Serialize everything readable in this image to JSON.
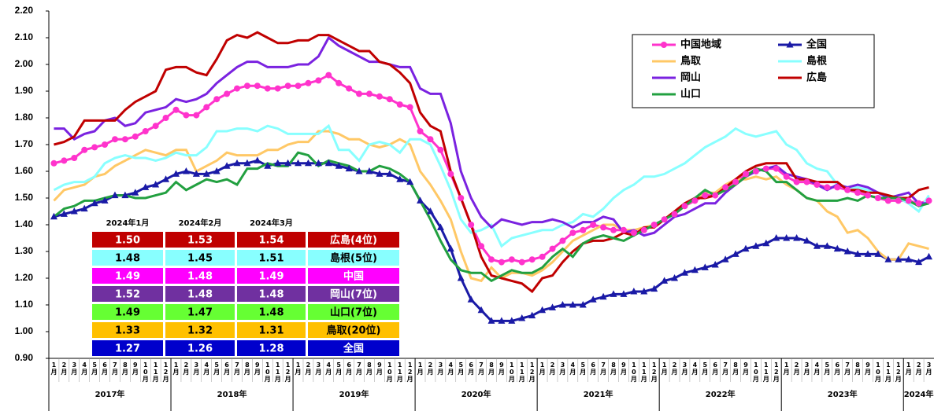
{
  "chart_data": {
    "type": "line",
    "categories": [
      "1月",
      "2月",
      "3月",
      "4月",
      "5月",
      "6月",
      "7月",
      "8月",
      "9月",
      "10月",
      "11月",
      "12月",
      "1月",
      "2月",
      "3月",
      "4月",
      "5月",
      "6月",
      "7月",
      "8月",
      "9月",
      "10月",
      "11月",
      "12月",
      "1月",
      "2月",
      "3月",
      "4月",
      "5月",
      "6月",
      "7月",
      "8月",
      "9月",
      "10月",
      "11月",
      "12月",
      "1月",
      "2月",
      "3月",
      "4月",
      "5月",
      "6月",
      "7月",
      "8月",
      "9月",
      "10月",
      "11月",
      "12月",
      "1月",
      "2月",
      "3月",
      "4月",
      "5月",
      "6月",
      "7月",
      "8月",
      "9月",
      "10月",
      "11月",
      "12月",
      "1月",
      "2月",
      "3月",
      "4月",
      "5月",
      "6月",
      "7月",
      "8月",
      "9月",
      "10月",
      "11月",
      "12月",
      "1月",
      "2月",
      "3月",
      "4月",
      "5月",
      "6月",
      "7月",
      "8月",
      "9月",
      "10月",
      "11月",
      "12月",
      "1月",
      "2月",
      "3月"
    ],
    "year_labels": [
      "2017年",
      "2018年",
      "2019年",
      "2020年",
      "2021年",
      "2022年",
      "2023年",
      "2024年"
    ],
    "ylim": [
      0.9,
      2.2
    ],
    "yticks": [
      {
        "value": 0.9,
        "label": "0.90"
      },
      {
        "value": 1.0,
        "label": "1.00"
      },
      {
        "value": 1.1,
        "label": "1.10"
      },
      {
        "value": 1.2,
        "label": "1.20"
      },
      {
        "value": 1.3,
        "label": "1.30"
      },
      {
        "value": 1.4,
        "label": "1.40"
      },
      {
        "value": 1.5,
        "label": "1.50"
      },
      {
        "value": 1.6,
        "label": "1.60"
      },
      {
        "value": 1.7,
        "label": "1.70"
      },
      {
        "value": 1.8,
        "label": "1.80"
      },
      {
        "value": 1.9,
        "label": "1.90"
      },
      {
        "value": 2.0,
        "label": "2.00"
      },
      {
        "value": 2.1,
        "label": "2.10"
      },
      {
        "value": 2.2,
        "label": "2.20"
      }
    ],
    "grid": false,
    "legend": "top-right",
    "series": [
      {
        "name": "中国地域",
        "color": "#ff33cc",
        "marker": "circle",
        "values": [
          1.63,
          1.64,
          1.65,
          1.68,
          1.69,
          1.7,
          1.72,
          1.72,
          1.73,
          1.75,
          1.77,
          1.8,
          1.83,
          1.81,
          1.81,
          1.84,
          1.87,
          1.89,
          1.91,
          1.92,
          1.92,
          1.91,
          1.91,
          1.92,
          1.92,
          1.93,
          1.94,
          1.96,
          1.93,
          1.91,
          1.89,
          1.89,
          1.88,
          1.87,
          1.85,
          1.84,
          1.75,
          1.72,
          1.68,
          1.59,
          1.5,
          1.4,
          1.32,
          1.27,
          1.26,
          1.27,
          1.26,
          1.27,
          1.28,
          1.31,
          1.34,
          1.37,
          1.38,
          1.4,
          1.39,
          1.38,
          1.38,
          1.37,
          1.38,
          1.4,
          1.42,
          1.44,
          1.47,
          1.49,
          1.51,
          1.51,
          1.54,
          1.56,
          1.59,
          1.6,
          1.61,
          1.61,
          1.58,
          1.56,
          1.56,
          1.55,
          1.54,
          1.54,
          1.53,
          1.52,
          1.51,
          1.5,
          1.49,
          1.49,
          1.49,
          1.48,
          1.49
        ]
      },
      {
        "name": "全国",
        "color": "#1a1aa6",
        "marker": "triangle",
        "values": [
          1.43,
          1.44,
          1.45,
          1.46,
          1.48,
          1.49,
          1.51,
          1.51,
          1.52,
          1.54,
          1.55,
          1.57,
          1.59,
          1.6,
          1.59,
          1.59,
          1.6,
          1.62,
          1.63,
          1.63,
          1.64,
          1.62,
          1.63,
          1.63,
          1.63,
          1.63,
          1.63,
          1.63,
          1.62,
          1.61,
          1.6,
          1.6,
          1.59,
          1.59,
          1.57,
          1.56,
          1.49,
          1.45,
          1.39,
          1.31,
          1.2,
          1.12,
          1.08,
          1.04,
          1.04,
          1.04,
          1.05,
          1.06,
          1.08,
          1.09,
          1.1,
          1.1,
          1.1,
          1.12,
          1.13,
          1.14,
          1.14,
          1.15,
          1.15,
          1.16,
          1.19,
          1.2,
          1.22,
          1.23,
          1.24,
          1.25,
          1.27,
          1.29,
          1.31,
          1.32,
          1.33,
          1.35,
          1.35,
          1.35,
          1.34,
          1.32,
          1.32,
          1.31,
          1.3,
          1.29,
          1.29,
          1.29,
          1.27,
          1.27,
          1.27,
          1.26,
          1.28
        ]
      },
      {
        "name": "鳥取",
        "color": "#ffc866",
        "marker": "none",
        "values": [
          1.49,
          1.53,
          1.54,
          1.55,
          1.58,
          1.59,
          1.62,
          1.64,
          1.66,
          1.68,
          1.67,
          1.66,
          1.68,
          1.68,
          1.6,
          1.62,
          1.64,
          1.67,
          1.66,
          1.66,
          1.66,
          1.68,
          1.68,
          1.7,
          1.71,
          1.71,
          1.75,
          1.75,
          1.74,
          1.72,
          1.72,
          1.7,
          1.69,
          1.7,
          1.72,
          1.7,
          1.6,
          1.55,
          1.49,
          1.42,
          1.3,
          1.2,
          1.19,
          1.24,
          1.2,
          1.22,
          1.22,
          1.21,
          1.23,
          1.26,
          1.3,
          1.34,
          1.36,
          1.38,
          1.4,
          1.4,
          1.38,
          1.38,
          1.39,
          1.4,
          1.42,
          1.45,
          1.47,
          1.5,
          1.52,
          1.52,
          1.55,
          1.57,
          1.57,
          1.58,
          1.57,
          1.58,
          1.55,
          1.53,
          1.5,
          1.49,
          1.45,
          1.43,
          1.37,
          1.38,
          1.35,
          1.3,
          1.27,
          1.27,
          1.33,
          1.32,
          1.31
        ]
      },
      {
        "name": "島根",
        "color": "#88ffff",
        "marker": "none",
        "values": [
          1.53,
          1.55,
          1.56,
          1.56,
          1.58,
          1.63,
          1.65,
          1.66,
          1.65,
          1.65,
          1.64,
          1.65,
          1.67,
          1.66,
          1.66,
          1.69,
          1.75,
          1.75,
          1.76,
          1.76,
          1.75,
          1.77,
          1.76,
          1.74,
          1.74,
          1.74,
          1.74,
          1.77,
          1.68,
          1.68,
          1.64,
          1.7,
          1.71,
          1.7,
          1.67,
          1.72,
          1.72,
          1.7,
          1.62,
          1.53,
          1.42,
          1.37,
          1.38,
          1.4,
          1.32,
          1.35,
          1.36,
          1.37,
          1.38,
          1.38,
          1.4,
          1.41,
          1.44,
          1.43,
          1.46,
          1.5,
          1.53,
          1.55,
          1.58,
          1.58,
          1.59,
          1.61,
          1.63,
          1.66,
          1.69,
          1.71,
          1.73,
          1.76,
          1.74,
          1.73,
          1.74,
          1.75,
          1.7,
          1.68,
          1.63,
          1.61,
          1.6,
          1.55,
          1.54,
          1.54,
          1.53,
          1.52,
          1.5,
          1.5,
          1.48,
          1.45,
          1.51
        ]
      },
      {
        "name": "岡山",
        "color": "#7a22e0",
        "marker": "none",
        "values": [
          1.76,
          1.76,
          1.72,
          1.74,
          1.75,
          1.79,
          1.8,
          1.77,
          1.78,
          1.82,
          1.83,
          1.84,
          1.87,
          1.86,
          1.87,
          1.89,
          1.93,
          1.96,
          1.99,
          2.01,
          2.01,
          1.99,
          1.99,
          1.99,
          2.0,
          2.0,
          2.03,
          2.1,
          2.07,
          2.05,
          2.03,
          2.01,
          2.01,
          2.0,
          1.99,
          1.99,
          1.91,
          1.89,
          1.89,
          1.78,
          1.6,
          1.5,
          1.43,
          1.39,
          1.42,
          1.41,
          1.4,
          1.41,
          1.41,
          1.42,
          1.41,
          1.39,
          1.41,
          1.41,
          1.43,
          1.42,
          1.37,
          1.38,
          1.36,
          1.37,
          1.4,
          1.43,
          1.44,
          1.46,
          1.48,
          1.48,
          1.52,
          1.55,
          1.58,
          1.6,
          1.61,
          1.62,
          1.59,
          1.58,
          1.57,
          1.55,
          1.53,
          1.55,
          1.54,
          1.55,
          1.54,
          1.52,
          1.5,
          1.51,
          1.52,
          1.48,
          1.48
        ]
      },
      {
        "name": "広島",
        "color": "#c00000",
        "marker": "none",
        "values": [
          1.7,
          1.71,
          1.73,
          1.79,
          1.79,
          1.79,
          1.79,
          1.83,
          1.86,
          1.88,
          1.9,
          1.98,
          1.99,
          1.99,
          1.97,
          1.96,
          2.02,
          2.09,
          2.11,
          2.1,
          2.12,
          2.1,
          2.08,
          2.08,
          2.09,
          2.09,
          2.11,
          2.11,
          2.09,
          2.07,
          2.05,
          2.05,
          2.01,
          2.0,
          1.97,
          1.93,
          1.82,
          1.77,
          1.75,
          1.6,
          1.5,
          1.4,
          1.28,
          1.21,
          1.2,
          1.19,
          1.18,
          1.15,
          1.2,
          1.21,
          1.26,
          1.3,
          1.33,
          1.34,
          1.34,
          1.35,
          1.37,
          1.36,
          1.39,
          1.39,
          1.42,
          1.45,
          1.48,
          1.5,
          1.5,
          1.51,
          1.54,
          1.57,
          1.6,
          1.62,
          1.63,
          1.63,
          1.63,
          1.57,
          1.57,
          1.56,
          1.56,
          1.56,
          1.53,
          1.53,
          1.52,
          1.52,
          1.51,
          1.5,
          1.5,
          1.53,
          1.54
        ]
      },
      {
        "name": "山口",
        "color": "#22a040",
        "marker": "none",
        "values": [
          1.43,
          1.46,
          1.47,
          1.49,
          1.49,
          1.5,
          1.51,
          1.51,
          1.5,
          1.5,
          1.51,
          1.52,
          1.56,
          1.53,
          1.55,
          1.57,
          1.56,
          1.57,
          1.55,
          1.61,
          1.61,
          1.63,
          1.62,
          1.62,
          1.67,
          1.66,
          1.62,
          1.64,
          1.63,
          1.62,
          1.6,
          1.6,
          1.62,
          1.61,
          1.59,
          1.56,
          1.49,
          1.42,
          1.34,
          1.27,
          1.23,
          1.22,
          1.22,
          1.19,
          1.21,
          1.23,
          1.22,
          1.22,
          1.24,
          1.28,
          1.31,
          1.28,
          1.33,
          1.35,
          1.36,
          1.35,
          1.34,
          1.36,
          1.38,
          1.4,
          1.42,
          1.44,
          1.47,
          1.5,
          1.53,
          1.51,
          1.53,
          1.55,
          1.58,
          1.61,
          1.6,
          1.56,
          1.56,
          1.53,
          1.5,
          1.49,
          1.49,
          1.49,
          1.5,
          1.49,
          1.51,
          1.5,
          1.5,
          1.5,
          1.49,
          1.47,
          1.48
        ]
      }
    ],
    "table": {
      "columns": [
        "2024年1月",
        "2024年2月",
        "2024年3月"
      ],
      "rows": [
        {
          "label": "広島(4位)",
          "values": [
            "1.50",
            "1.53",
            "1.54"
          ],
          "color": "#c00000",
          "text_color": "#ffffff"
        },
        {
          "label": "島根(5位)",
          "values": [
            "1.48",
            "1.45",
            "1.51"
          ],
          "color": "#88ffff",
          "text_color": "#000000"
        },
        {
          "label": "中国",
          "values": [
            "1.49",
            "1.48",
            "1.49"
          ],
          "color": "#ff00ff",
          "text_color": "#ffffff"
        },
        {
          "label": "岡山(7位)",
          "values": [
            "1.52",
            "1.48",
            "1.48"
          ],
          "color": "#7030a0",
          "text_color": "#ffffff"
        },
        {
          "label": "山口(7位)",
          "values": [
            "1.49",
            "1.47",
            "1.48"
          ],
          "color": "#66ff33",
          "text_color": "#000000"
        },
        {
          "label": "鳥取(20位)",
          "values": [
            "1.33",
            "1.32",
            "1.31"
          ],
          "color": "#ffc000",
          "text_color": "#000000"
        },
        {
          "label": "全国",
          "values": [
            "1.27",
            "1.26",
            "1.28"
          ],
          "color": "#0000cc",
          "text_color": "#ffffff"
        }
      ]
    }
  }
}
